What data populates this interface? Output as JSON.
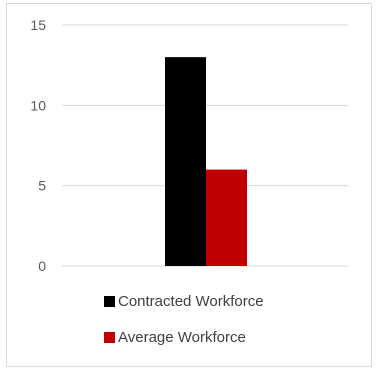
{
  "chart_data": {
    "type": "bar",
    "categories": [
      ""
    ],
    "series": [
      {
        "name": "Contracted Workforce",
        "values": [
          13
        ],
        "color": "#000000"
      },
      {
        "name": "Average Workforce",
        "values": [
          6
        ],
        "color": "#c00000"
      }
    ],
    "ylim": [
      0,
      15
    ],
    "yticks": [
      "0",
      "5",
      "10",
      "15"
    ],
    "grid": true,
    "legend": "bottom"
  }
}
